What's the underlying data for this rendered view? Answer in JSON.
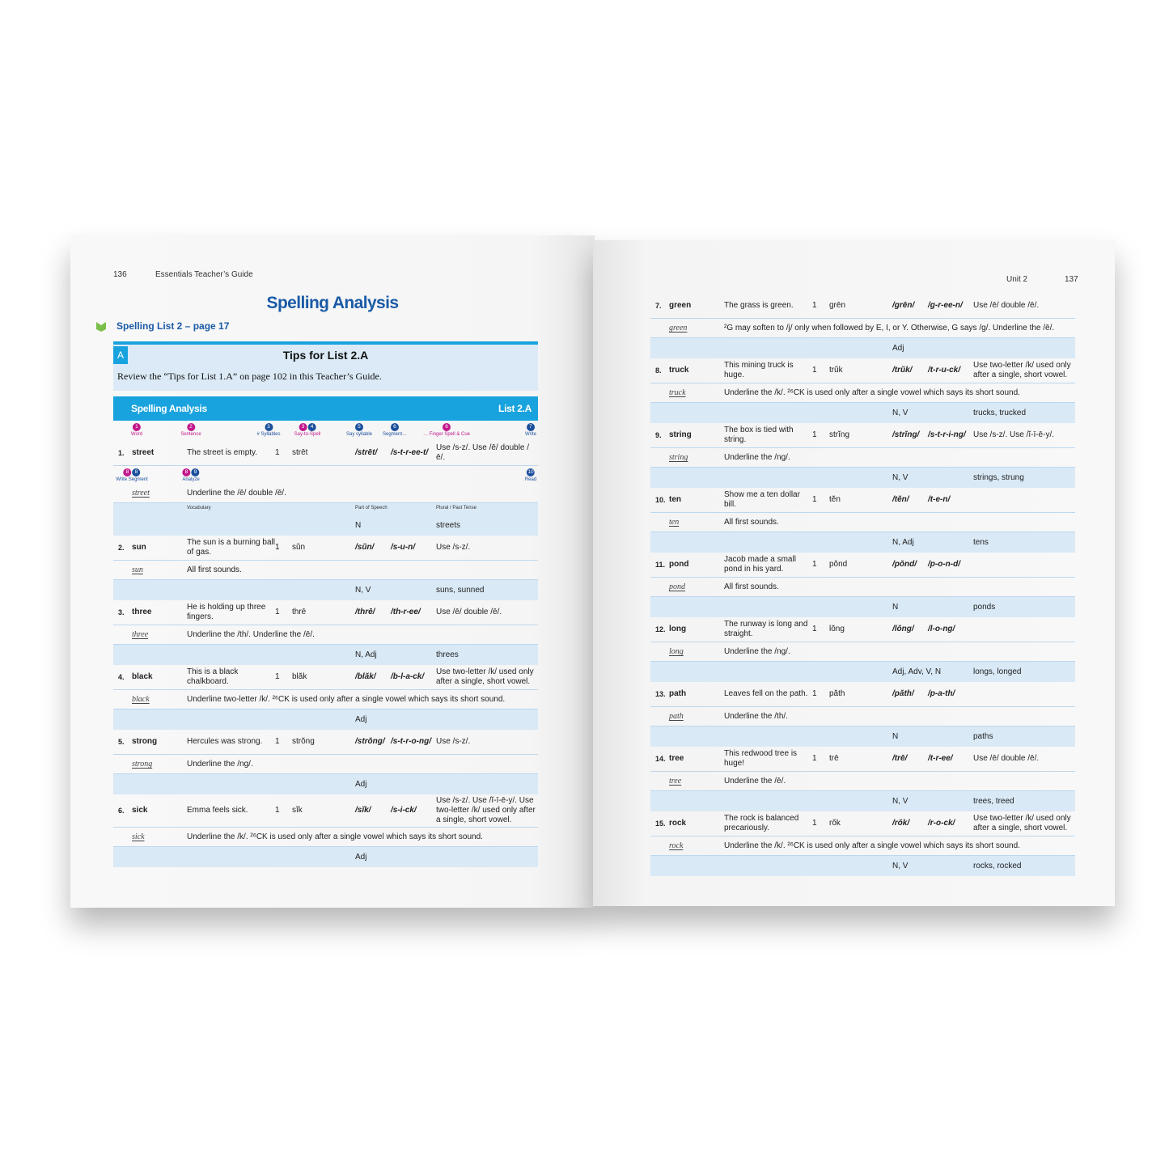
{
  "left_page": {
    "page_number": "136",
    "running_head": "Essentials Teacher’s Guide",
    "title": "Spelling Analysis",
    "subtitle": "Spelling List 2 – page 17",
    "tips": {
      "letter": "A",
      "title": "Tips for List 2.A",
      "text": "Review the “Tips for List 1.A” on page 102 in this Teacher’s Guide."
    },
    "table": {
      "title": "Spelling Analysis",
      "list": "List 2.A",
      "steps": [
        {
          "badges": [
            "1"
          ],
          "label": "Word"
        },
        {
          "badges": [
            "2"
          ],
          "label": "Sentence"
        },
        {
          "badges": [
            "3"
          ],
          "label": "# Syllables"
        },
        {
          "badges": [
            "3",
            "4"
          ],
          "label": "Say-to-Spell"
        },
        {
          "badges": [
            "5"
          ],
          "label": "Say syllable"
        },
        {
          "badges": [
            "6"
          ],
          "label": "Segment…"
        },
        {
          "badges": [
            "6"
          ],
          "label": "… Finger Spell & Cue"
        },
        {
          "badges": [
            "7"
          ],
          "label": "Write"
        }
      ],
      "steps_second": [
        {
          "badges": [
            "8",
            "8"
          ],
          "label": "Write Segment"
        },
        {
          "badges": [
            "8",
            "9"
          ],
          "label": "Analyze"
        },
        {
          "badges": [
            "10"
          ],
          "label": "Read"
        }
      ],
      "labels": [
        "Vocabulary",
        "Part of Speech",
        "Plural / Past Tense"
      ],
      "entries": [
        {
          "num": "1.",
          "word": "street",
          "sentence": "The street is empty.",
          "syllables": "1",
          "say": "strēt",
          "phonogram": "/strēt/",
          "segment": "/s-t-r-ee-t/",
          "cue": "Use /s-z/. Use /ē/ double /ē/.",
          "written": "street",
          "analyze": "Underline the /ē/ double /ē/.",
          "pos": "N",
          "plural": "streets"
        },
        {
          "num": "2.",
          "word": "sun",
          "sentence": "The sun is a burning ball of gas.",
          "syllables": "1",
          "say": "sŭn",
          "phonogram": "/sŭn/",
          "segment": "/s-u-n/",
          "cue": "Use /s-z/.",
          "written": "sun",
          "analyze": "All first sounds.",
          "pos": "N, V",
          "plural": "suns, sunned"
        },
        {
          "num": "3.",
          "word": "three",
          "sentence": "He is holding up three fingers.",
          "syllables": "1",
          "say": "thrē",
          "phonogram": "/thrē/",
          "segment": "/th-r-ee/",
          "cue": "Use /ē/ double /ē/.",
          "written": "three",
          "analyze": "Underline the /th/. Underline the /ē/.",
          "pos": "N, Adj",
          "plural": "threes"
        },
        {
          "num": "4.",
          "word": "black",
          "sentence": "This is a black chalkboard.",
          "syllables": "1",
          "say": "blăk",
          "phonogram": "/blăk/",
          "segment": "/b-l-a-ck/",
          "cue": "Use two-letter /k/ used only after a single, short vowel.",
          "written": "black",
          "analyze": "Underline two-letter /k/. ²⁶CK is used only after a single vowel which says its short sound.",
          "pos": "Adj"
        },
        {
          "num": "5.",
          "word": "strong",
          "sentence": "Hercules was strong.",
          "syllables": "1",
          "say": "strŏng",
          "phonogram": "/strŏng/",
          "segment": "/s-t-r-o-ng/",
          "cue": "Use /s-z/.",
          "written": "strong",
          "analyze": "Underline the /ng/.",
          "pos": "Adj"
        },
        {
          "num": "6.",
          "word": "sick",
          "sentence": "Emma feels sick.",
          "syllables": "1",
          "say": "sĭk",
          "phonogram": "/sĭk/",
          "segment": "/s-i-ck/",
          "cue": "Use /s-z/. Use /ĭ-ī-ē-y/. Use two-letter /k/ used only after a single, short vowel.",
          "written": "sick",
          "analyze": "Underline the /k/. ²⁶CK is used only after a single vowel which says its short sound.",
          "pos": "Adj"
        }
      ]
    }
  },
  "right_page": {
    "page_number": "137",
    "running_head": "Unit 2",
    "entries": [
      {
        "num": "7.",
        "word": "green",
        "sentence": "The grass is green.",
        "syllables": "1",
        "say": "grēn",
        "phonogram": "/grēn/",
        "segment": "/g-r-ee-n/",
        "cue": "Use /ē/ double /ē/.",
        "written": "green",
        "analyze": "²G may soften to /j/ only when followed by E, I, or Y. Otherwise, G says /g/. Underline the /ē/.",
        "pos": "Adj"
      },
      {
        "num": "8.",
        "word": "truck",
        "sentence": "This mining truck is huge.",
        "syllables": "1",
        "say": "trŭk",
        "phonogram": "/trŭk/",
        "segment": "/t-r-u-ck/",
        "cue": "Use two-letter /k/ used only after a single, short vowel.",
        "written": "truck",
        "analyze": "Underline the /k/. ²⁶CK is used only after a single vowel which says its short sound.",
        "pos": "N, V",
        "plural": "trucks, trucked"
      },
      {
        "num": "9.",
        "word": "string",
        "sentence": "The box is tied with string.",
        "syllables": "1",
        "say": "strĭng",
        "phonogram": "/strĭng/",
        "segment": "/s-t-r-i-ng/",
        "cue": "Use /s-z/. Use /ĭ-ī-ē-y/.",
        "written": "string",
        "analyze": "Underline the /ng/.",
        "pos": "N, V",
        "plural": "strings, strung"
      },
      {
        "num": "10.",
        "word": "ten",
        "sentence": "Show me a ten dollar bill.",
        "syllables": "1",
        "say": "tĕn",
        "phonogram": "/tĕn/",
        "segment": "/t-e-n/",
        "written": "ten",
        "analyze": "All first sounds.",
        "pos": "N, Adj",
        "plural": "tens"
      },
      {
        "num": "11.",
        "word": "pond",
        "sentence": "Jacob made a small pond in his yard.",
        "syllables": "1",
        "say": "pŏnd",
        "phonogram": "/pŏnd/",
        "segment": "/p-o-n-d/",
        "written": "pond",
        "analyze": "All first sounds.",
        "pos": "N",
        "plural": "ponds"
      },
      {
        "num": "12.",
        "word": "long",
        "sentence": "The runway is long and straight.",
        "syllables": "1",
        "say": "lŏng",
        "phonogram": "/lŏng/",
        "segment": "/l-o-ng/",
        "written": "long",
        "analyze": "Underline the /ng/.",
        "pos": "Adj, Adv, V, N",
        "plural": "longs, longed"
      },
      {
        "num": "13.",
        "word": "path",
        "sentence": "Leaves fell on the path.",
        "syllables": "1",
        "say": "păth",
        "phonogram": "/păth/",
        "segment": "/p-a-th/",
        "written": "path",
        "analyze": "Underline the /th/.",
        "pos": "N",
        "plural": "paths"
      },
      {
        "num": "14.",
        "word": "tree",
        "sentence": "This redwood tree is huge!",
        "syllables": "1",
        "say": "trē",
        "phonogram": "/trē/",
        "segment": "/t-r-ee/",
        "cue": "Use /ē/ double /ē/.",
        "written": "tree",
        "analyze": "Underline the /ē/.",
        "pos": "N, V",
        "plural": "trees, treed"
      },
      {
        "num": "15.",
        "word": "rock",
        "sentence": "The rock is balanced precariously.",
        "syllables": "1",
        "say": "rŏk",
        "phonogram": "/rŏk/",
        "segment": "/r-o-ck/",
        "cue": "Use two-letter /k/ used only after a single, short vowel.",
        "written": "rock",
        "analyze": "Underline the /k/. ²⁶CK is used only after a single vowel which says its short sound.",
        "pos": "N, V",
        "plural": "rocks, rocked"
      }
    ]
  }
}
